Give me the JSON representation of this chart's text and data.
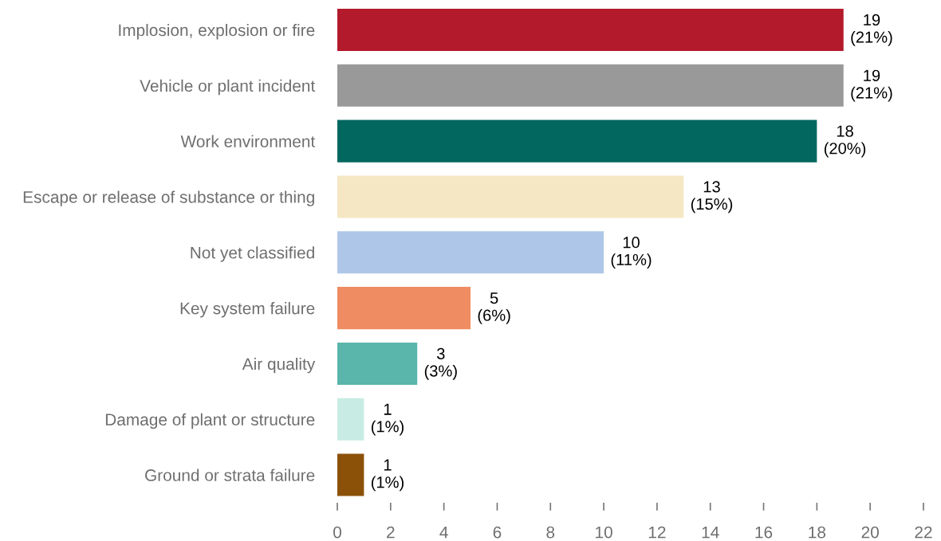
{
  "chart_data": {
    "type": "bar",
    "orientation": "horizontal",
    "categories": [
      "Implosion, explosion or fire",
      "Vehicle or plant incident",
      "Work environment",
      "Escape or release of substance or thing",
      "Not yet classified",
      "Key system failure",
      "Air quality",
      "Damage of plant or structure",
      "Ground or strata failure"
    ],
    "values": [
      19,
      19,
      18,
      13,
      10,
      5,
      3,
      1,
      1
    ],
    "colors": [
      "#b31a2c",
      "#999999",
      "#02675f",
      "#f5e7c4",
      "#aec7e8",
      "#ef8c62",
      "#5ab5aa",
      "#c8ece3",
      "#8b5109"
    ],
    "value_labels": [
      "19\n(21%)",
      "19\n(21%)",
      "18\n(20%)",
      "13\n(15%)",
      "10\n(11%)",
      "5\n(6%)",
      "3\n(3%)",
      "1\n(1%)",
      "1\n(1%)"
    ],
    "xlim": [
      0,
      22
    ],
    "xticks": [
      0,
      2,
      4,
      6,
      8,
      10,
      12,
      14,
      16,
      18,
      20,
      22
    ],
    "grid": false,
    "legend": false
  }
}
